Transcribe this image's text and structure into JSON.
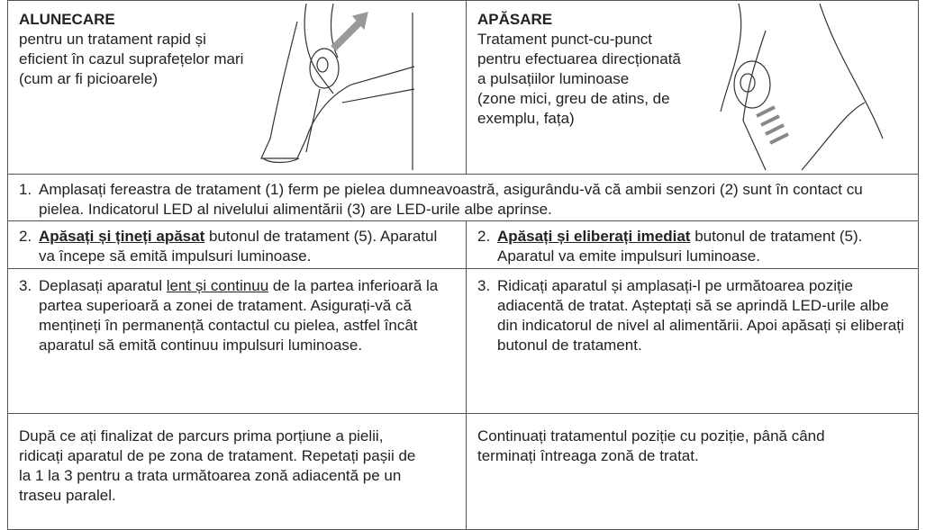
{
  "top": [
    {
      "title": "ALUNECARE",
      "description": "pentru un tratament rapid și eficient în cazul suprafețelor mari (cum ar fi picioarele)"
    },
    {
      "title": "APĂSARE",
      "description": "Tratament punct-cu-punct pentru efectuarea direcționată a pulsațiilor luminoase",
      "note": "(zone mici, greu de atins, de exemplu, fața)"
    }
  ],
  "full_step": {
    "number": "1.",
    "text": "Amplasați fereastra de tratament (1) ferm pe pielea dumneavoastră, asigurându-vă că ambii senzori (2) sunt în contact cu pielea. Indicatorul LED al nivelului alimentării (3) are LED-urile albe aprinse."
  },
  "steps": [
    [
      {
        "number": "2.",
        "emphasis": "Apăsați și țineți apăsat",
        "after": " butonul de tratament (5). Aparatul va începe să emită impulsuri luminoase."
      },
      {
        "number": "2.",
        "emphasis": "Apăsați și eliberați imediat",
        "after": " butonul de tratament (5). Aparatul va emite impulsuri luminoase."
      }
    ],
    [
      {
        "number": "3.",
        "before": "Deplasați aparatul ",
        "emphasis": "lent și continuu",
        "after": " de la partea inferioară la partea superioară a zonei de tratament. Asigurați-vă că mențineți în permanență contactul cu pielea, astfel încât aparatul să emită continuu impulsuri luminoase."
      },
      {
        "number": "3.",
        "text": "Ridicați aparatul și amplasați-l pe următoarea poziție adiacentă de tratat. Așteptați să se aprindă LED-urile albe din indicatorul de nivel al alimentării. Apoi apăsați și eliberați butonul de tratament."
      }
    ]
  ],
  "closing": [
    "După ce ați finalizat de parcurs prima porțiune a pielii, ridicați aparatul de pe zona de tratament. Repetați pașii de la 1 la 3 pentru a trata următoarea zonă adiacentă pe un traseu paralel.",
    "Continuați tratamentul poziție cu poziție, până când terminați întreaga zonă de tratat."
  ]
}
